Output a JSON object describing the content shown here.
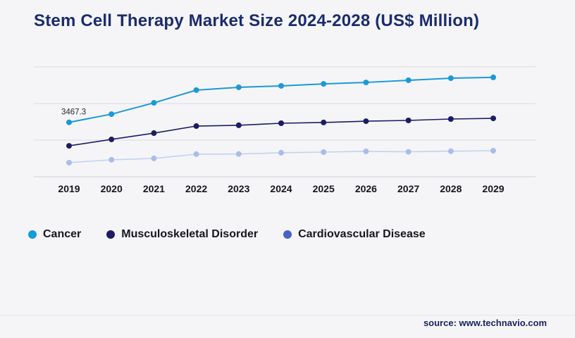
{
  "title": "Stem Cell Therapy Market Size 2024-2028 (US$ Million)",
  "source_label": "source: www.technavio.com",
  "chart_data": {
    "type": "line",
    "x": [
      "2019",
      "2020",
      "2021",
      "2022",
      "2023",
      "2024",
      "2025",
      "2026",
      "2027",
      "2028",
      "2029"
    ],
    "series": [
      {
        "name": "Cancer",
        "color": "#199ad8",
        "marker": "#199ad8",
        "legend_color": "#199ad8",
        "line_width": 2,
        "values": [
          3467.3,
          3990,
          4710,
          5520,
          5700,
          5790,
          5920,
          6010,
          6150,
          6280,
          6330
        ],
        "point_label": {
          "index": 0,
          "text": "3467.3"
        }
      },
      {
        "name": "Musculoskeletal Disorder",
        "color": "#1c1c66",
        "marker": "#1c1c66",
        "legend_color": "#1c1c66",
        "line_width": 1.6,
        "values": [
          1970,
          2380,
          2780,
          3230,
          3280,
          3410,
          3460,
          3540,
          3590,
          3680,
          3720
        ]
      },
      {
        "name": "Cardiovascular Disease",
        "color": "#c5d1f1",
        "marker": "#a9bdec",
        "legend_color": "#4763c6",
        "line_width": 1.6,
        "values": [
          900,
          1080,
          1170,
          1440,
          1450,
          1530,
          1570,
          1620,
          1590,
          1630,
          1660
        ]
      }
    ],
    "ylim": [
      0,
      7000
    ],
    "grid": true,
    "gridline_count": 4,
    "legend_position": "bottom",
    "xlabel": "",
    "ylabel": ""
  }
}
